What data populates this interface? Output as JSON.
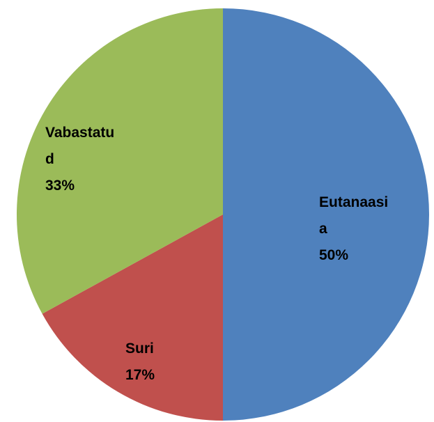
{
  "chart_data": {
    "type": "pie",
    "categories": [
      "Eutanaasia",
      "Suri",
      "Vabastatud"
    ],
    "values": [
      50,
      17,
      33
    ],
    "value_labels": [
      "50%",
      "17%",
      "33%"
    ],
    "colors": [
      "#4f81bd",
      "#c0504d",
      "#9bbb59"
    ]
  }
}
